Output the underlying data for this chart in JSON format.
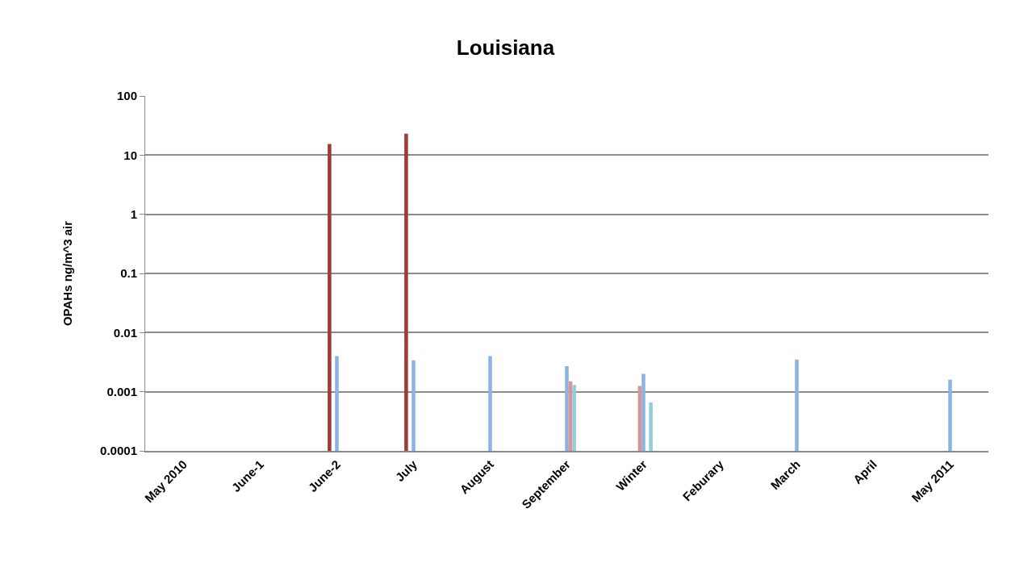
{
  "chart_data": {
    "type": "bar",
    "title": "Louisiana",
    "ylabel": "OPAHs ng/m^3 air",
    "categories": [
      "May 2010",
      "June-1",
      "June-2",
      "July",
      "August",
      "September",
      "Winter",
      "Feburary",
      "March",
      "April",
      "May 2011"
    ],
    "series": [
      {
        "color": "#9e3a38",
        "values": [
          null,
          null,
          15.5,
          23,
          null,
          null,
          null,
          null,
          null,
          null,
          null
        ]
      },
      {
        "color": "#d99594",
        "values": [
          null,
          null,
          null,
          null,
          null,
          null,
          0.00125,
          null,
          null,
          null,
          null
        ]
      },
      {
        "color": "#8db3e2",
        "values": [
          null,
          null,
          0.004,
          0.0034,
          0.004,
          0.0027,
          0.002,
          null,
          0.0035,
          null,
          0.0016
        ]
      },
      {
        "color": "#d99594",
        "values": [
          null,
          null,
          null,
          null,
          null,
          0.0015,
          null,
          null,
          null,
          null,
          null
        ]
      },
      {
        "color": "#93cddd",
        "values": [
          null,
          null,
          null,
          null,
          null,
          0.0013,
          0.00066,
          null,
          null,
          null,
          null
        ]
      }
    ],
    "log": "y",
    "ylim": [
      0.0001,
      100
    ],
    "yticks": [
      0.0001,
      0.001,
      0.01,
      0.1,
      1,
      10,
      100
    ],
    "grid": "y"
  }
}
